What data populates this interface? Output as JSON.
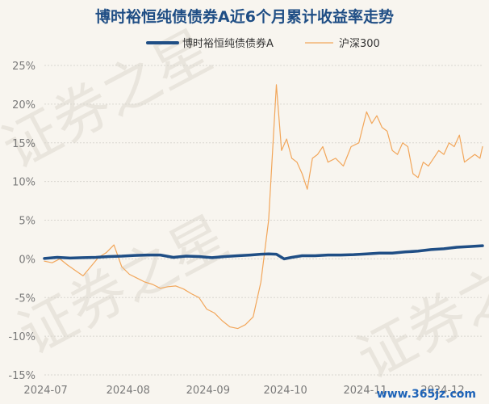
{
  "chart_data": {
    "type": "line",
    "title": "博时裕恒纯债债券A近6个月累计收益率走势",
    "xlabel": "",
    "ylabel": "",
    "ylim": [
      -15,
      25
    ],
    "yticks": [
      -15,
      -10,
      -5,
      0,
      5,
      10,
      15,
      20,
      25
    ],
    "ytick_labels": [
      "-15%",
      "-10%",
      "-5%",
      "0%",
      "5%",
      "10%",
      "15%",
      "20%",
      "25%"
    ],
    "x_tick_labels": [
      "2024-07",
      "2024-08",
      "2024-09",
      "2024-10",
      "2024-11",
      "2024-12"
    ],
    "x_tick_positions": [
      0.5,
      32.5,
      63.5,
      93.5,
      124.5,
      154.5
    ],
    "xlim": [
      0,
      170
    ],
    "grid": true,
    "legend_position": "top-center",
    "series": [
      {
        "name": "博时裕恒纯债债券A",
        "color": "#1f4e85",
        "x": [
          0,
          5,
          10,
          15,
          20,
          25,
          30,
          35,
          40,
          45,
          50,
          55,
          60,
          65,
          70,
          75,
          80,
          84,
          87,
          90,
          93,
          96,
          100,
          105,
          110,
          115,
          120,
          125,
          130,
          135,
          140,
          145,
          150,
          155,
          160,
          165,
          170
        ],
        "values": [
          0.05,
          0.2,
          0.1,
          0.15,
          0.2,
          0.3,
          0.35,
          0.45,
          0.5,
          0.5,
          0.2,
          0.35,
          0.3,
          0.15,
          0.3,
          0.4,
          0.5,
          0.6,
          0.65,
          0.6,
          0.0,
          0.2,
          0.4,
          0.4,
          0.5,
          0.5,
          0.55,
          0.65,
          0.75,
          0.75,
          0.9,
          1.0,
          1.2,
          1.3,
          1.5,
          1.6,
          1.7
        ]
      },
      {
        "name": "沪深300",
        "color": "#f2a65a",
        "x": [
          0,
          3,
          6,
          9,
          12,
          15,
          18,
          21,
          24,
          27,
          30,
          33,
          36,
          39,
          42,
          45,
          48,
          51,
          54,
          57,
          60,
          63,
          66,
          69,
          72,
          75,
          78,
          81,
          84,
          87,
          90,
          92,
          94,
          96,
          98,
          100,
          102,
          104,
          106,
          108,
          110,
          113,
          116,
          119,
          122,
          125,
          127,
          129,
          131,
          133,
          135,
          137,
          139,
          141,
          143,
          145,
          147,
          149,
          151,
          153,
          155,
          157,
          159,
          161,
          163,
          165,
          167,
          169,
          170
        ],
        "values": [
          -0.3,
          -0.5,
          0.0,
          -0.8,
          -1.5,
          -2.2,
          -1.0,
          0.2,
          0.8,
          1.8,
          -1.0,
          -2.0,
          -2.5,
          -3.0,
          -3.3,
          -3.8,
          -3.6,
          -3.5,
          -3.9,
          -4.5,
          -5.0,
          -6.5,
          -7.0,
          -8.0,
          -8.8,
          -9.0,
          -8.5,
          -7.5,
          -3.0,
          5.0,
          22.5,
          14.0,
          15.5,
          13.0,
          12.5,
          11.0,
          9.0,
          13.0,
          13.5,
          14.5,
          12.5,
          13.0,
          12.0,
          14.5,
          15.0,
          19.0,
          17.5,
          18.5,
          17.0,
          16.5,
          14.0,
          13.5,
          15.0,
          14.5,
          11.0,
          10.5,
          12.5,
          12.0,
          13.0,
          14.0,
          13.5,
          15.0,
          14.5,
          16.0,
          12.5,
          13.0,
          13.5,
          13.0,
          14.5
        ]
      }
    ]
  },
  "watermark": [
    "证券之星",
    "证券之星",
    "证券之星"
  ],
  "site_mark": "www.365jz.com"
}
